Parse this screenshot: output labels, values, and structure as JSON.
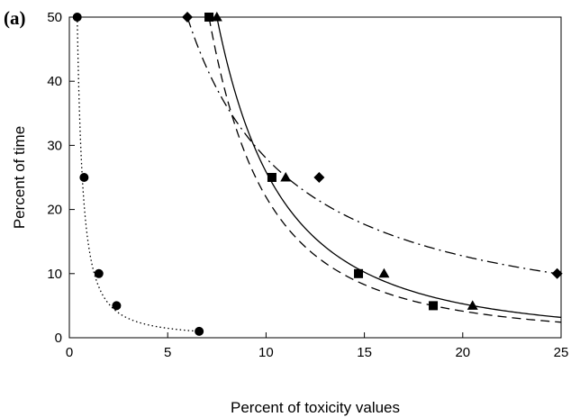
{
  "chart_data": {
    "type": "scatter",
    "panel_label": "(a)",
    "title": "",
    "xlabel": "Percent of toxicity values",
    "ylabel": "Percent of time",
    "xlim": [
      0,
      25
    ],
    "ylim": [
      0,
      50
    ],
    "xticks": [
      "0",
      "5",
      "10",
      "15",
      "20",
      "25"
    ],
    "yticks": [
      "0",
      "10",
      "20",
      "30",
      "40",
      "50"
    ],
    "grid": false,
    "legend": "none",
    "series": [
      {
        "marker": "circle",
        "line_style": "dotted",
        "color": "#000000",
        "points": [
          [
            0.4,
            50
          ],
          [
            0.75,
            25
          ],
          [
            1.5,
            10
          ],
          [
            2.4,
            5
          ],
          [
            6.6,
            1
          ]
        ]
      },
      {
        "marker": "diamond",
        "line_style": "dash-dot",
        "color": "#000000",
        "points": [
          [
            6.0,
            50
          ],
          [
            12.7,
            25
          ],
          [
            24.8,
            10
          ]
        ]
      },
      {
        "marker": "square",
        "line_style": "dashed",
        "color": "#000000",
        "points": [
          [
            7.1,
            50
          ],
          [
            10.3,
            25
          ],
          [
            14.7,
            10
          ],
          [
            18.5,
            5
          ]
        ]
      },
      {
        "marker": "triangle",
        "line_style": "solid",
        "color": "#000000",
        "points": [
          [
            7.5,
            50
          ],
          [
            11.0,
            25
          ],
          [
            16.0,
            10
          ],
          [
            20.5,
            5
          ]
        ]
      }
    ]
  }
}
